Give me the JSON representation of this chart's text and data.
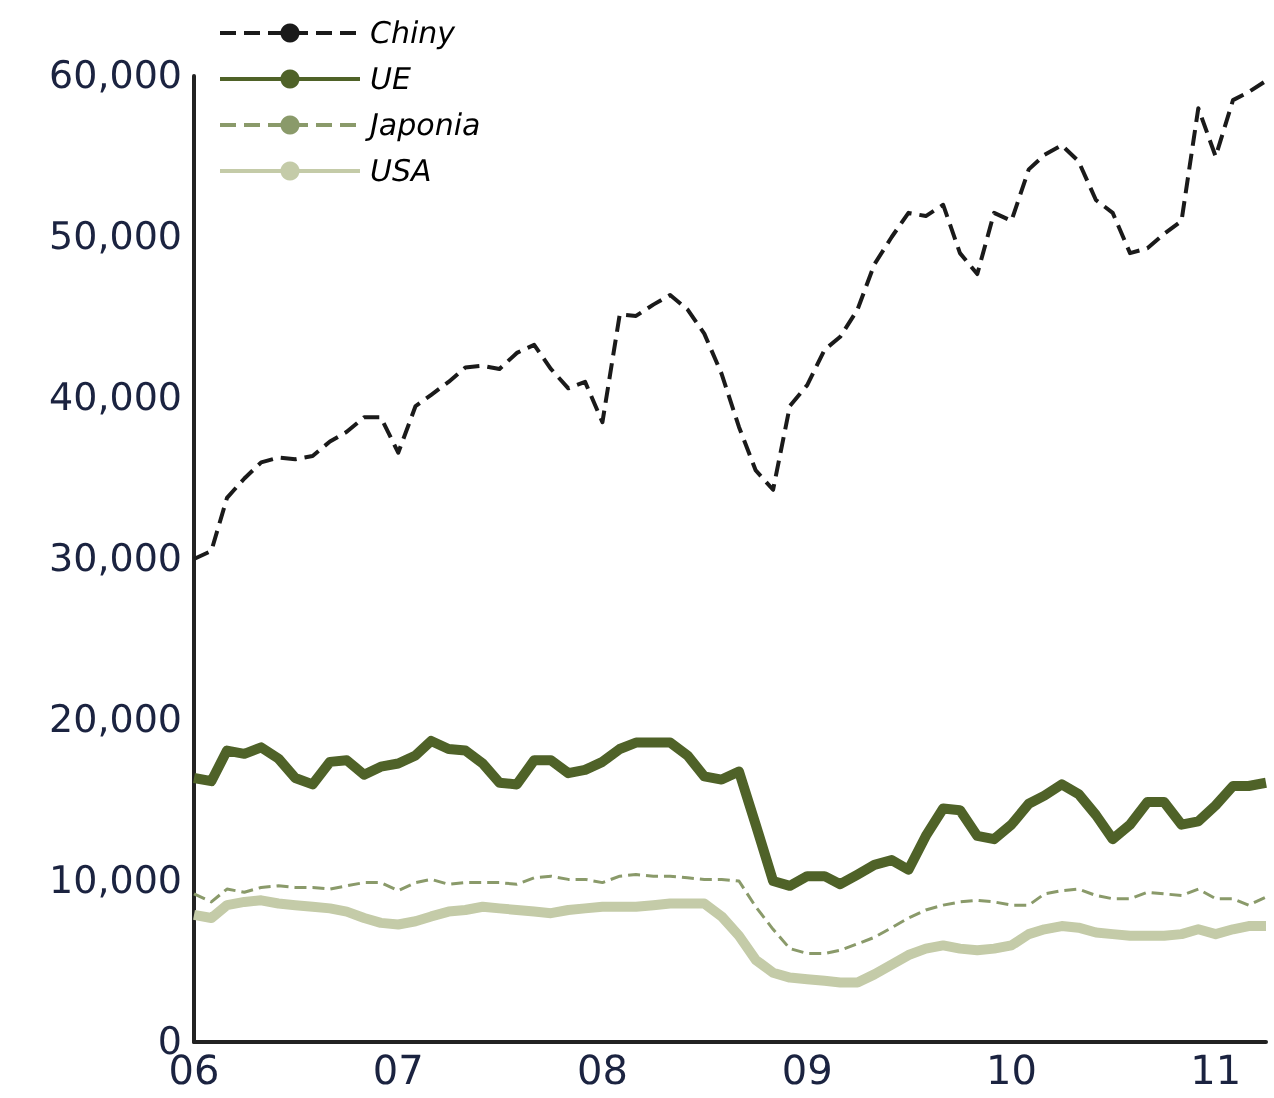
{
  "chart_data": {
    "type": "line",
    "x": [
      "2006-01",
      "2006-02",
      "2006-03",
      "2006-04",
      "2006-05",
      "2006-06",
      "2006-07",
      "2006-08",
      "2006-09",
      "2006-10",
      "2006-11",
      "2006-12",
      "2007-01",
      "2007-02",
      "2007-03",
      "2007-04",
      "2007-05",
      "2007-06",
      "2007-07",
      "2007-08",
      "2007-09",
      "2007-10",
      "2007-11",
      "2007-12",
      "2008-01",
      "2008-02",
      "2008-03",
      "2008-04",
      "2008-05",
      "2008-06",
      "2008-07",
      "2008-08",
      "2008-09",
      "2008-10",
      "2008-11",
      "2008-12",
      "2009-01",
      "2009-02",
      "2009-03",
      "2009-04",
      "2009-05",
      "2009-06",
      "2009-07",
      "2009-08",
      "2009-09",
      "2009-10",
      "2009-11",
      "2009-12",
      "2010-01",
      "2010-02",
      "2010-03",
      "2010-04",
      "2010-05",
      "2010-06",
      "2010-07",
      "2010-08",
      "2010-09",
      "2010-10",
      "2010-11",
      "2010-12",
      "2011-01",
      "2011-02",
      "2011-03",
      "2011-04"
    ],
    "series": [
      {
        "name": "Chiny",
        "color": "#1a1a1a",
        "line_style": "dashed",
        "values": [
          30000,
          30500,
          33800,
          35000,
          36000,
          36300,
          36200,
          36400,
          37300,
          37900,
          38800,
          38800,
          36600,
          39500,
          40200,
          41000,
          41900,
          42000,
          41800,
          42800,
          43300,
          41800,
          40600,
          41000,
          38500,
          45200,
          45100,
          45800,
          46400,
          45500,
          44000,
          41500,
          38200,
          35500,
          34300,
          39500,
          40800,
          43000,
          43800,
          45500,
          48300,
          50000,
          51500,
          51300,
          52000,
          49000,
          47700,
          51500,
          51000,
          54200,
          55100,
          55700,
          54700,
          52300,
          51500,
          49000,
          49300,
          50200,
          51000,
          58000,
          55000,
          58500,
          59000,
          59700
        ]
      },
      {
        "name": "UE",
        "color": "#4f6228",
        "line_style": "solid",
        "values": [
          16400,
          16200,
          18100,
          17900,
          18300,
          17600,
          16400,
          16000,
          17400,
          17500,
          16600,
          17100,
          17300,
          17800,
          18700,
          18200,
          18100,
          17300,
          16100,
          16000,
          17500,
          17500,
          16700,
          16900,
          17400,
          18200,
          18600,
          18600,
          18600,
          17800,
          16500,
          16300,
          16800,
          13500,
          10000,
          9700,
          10300,
          10300,
          9800,
          10400,
          11000,
          11300,
          10700,
          12800,
          14500,
          14400,
          12800,
          12600,
          13500,
          14800,
          15300,
          16000,
          15400,
          14100,
          12600,
          13500,
          14900,
          14900,
          13500,
          13700,
          14700,
          15900,
          15900,
          16100
        ]
      },
      {
        "name": "Japonia",
        "color": "#8a9a6a",
        "line_style": "dashed",
        "values": [
          9200,
          8700,
          9500,
          9300,
          9600,
          9700,
          9600,
          9600,
          9500,
          9700,
          9900,
          9900,
          9400,
          9900,
          10100,
          9800,
          9900,
          9900,
          9900,
          9800,
          10200,
          10300,
          10100,
          10100,
          9900,
          10300,
          10400,
          10300,
          10300,
          10200,
          10100,
          10100,
          10000,
          8400,
          7000,
          5800,
          5500,
          5500,
          5700,
          6100,
          6500,
          7100,
          7700,
          8200,
          8500,
          8700,
          8800,
          8700,
          8500,
          8500,
          9200,
          9400,
          9500,
          9100,
          8900,
          8900,
          9300,
          9200,
          9100,
          9500,
          8900,
          8900,
          8500,
          9000
        ]
      },
      {
        "name": "USA",
        "color": "#c4cba8",
        "line_style": "solid",
        "values": [
          7900,
          7700,
          8500,
          8700,
          8800,
          8600,
          8500,
          8400,
          8300,
          8100,
          7700,
          7400,
          7300,
          7500,
          7800,
          8100,
          8200,
          8400,
          8300,
          8200,
          8100,
          8000,
          8200,
          8300,
          8400,
          8400,
          8400,
          8500,
          8600,
          8600,
          8600,
          7800,
          6600,
          5100,
          4300,
          4000,
          3900,
          3800,
          3700,
          3700,
          4200,
          4800,
          5400,
          5800,
          6000,
          5800,
          5700,
          5800,
          6000,
          6700,
          7000,
          7200,
          7100,
          6800,
          6700,
          6600,
          6600,
          6600,
          6700,
          7000,
          6700,
          7000,
          7200,
          7200
        ]
      }
    ],
    "xlim": [
      "2006-01",
      "2011-04"
    ],
    "xticks": [
      {
        "value": "2006-01",
        "label": "06"
      },
      {
        "value": "2007-01",
        "label": "07"
      },
      {
        "value": "2008-01",
        "label": "08"
      },
      {
        "value": "2009-01",
        "label": "09"
      },
      {
        "value": "2010-01",
        "label": "10"
      },
      {
        "value": "2011-01",
        "label": "11"
      }
    ],
    "ylim": [
      0,
      60000
    ],
    "yticks": [
      {
        "value": 0,
        "label": "0"
      },
      {
        "value": 10000,
        "label": "10,000"
      },
      {
        "value": 20000,
        "label": "20,000"
      },
      {
        "value": 30000,
        "label": "30,000"
      },
      {
        "value": 40000,
        "label": "40,000"
      },
      {
        "value": 50000,
        "label": "50,000"
      },
      {
        "value": 60000,
        "label": "60,000"
      }
    ],
    "grid": false,
    "legend": "top left",
    "marker": "none"
  }
}
